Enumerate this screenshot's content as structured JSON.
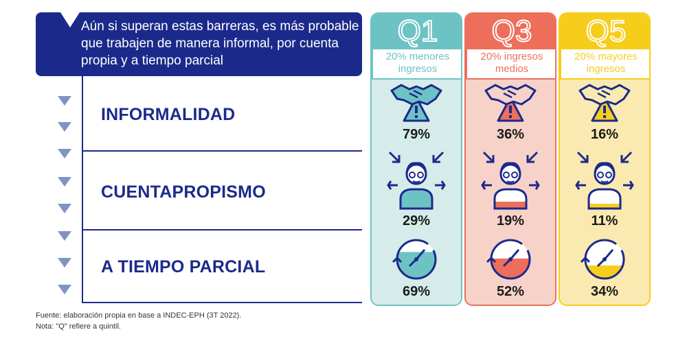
{
  "header": {
    "text": "Aún si superan estas barreras, es más probable que trabajen de manera informal, por cuenta propia y a tiempo parcial"
  },
  "rows": [
    {
      "label": "INFORMALIDAD"
    },
    {
      "label": "CUENTAPROPISMO"
    },
    {
      "label": "A TIEMPO PARCIAL"
    }
  ],
  "columns": [
    {
      "q": "Q1",
      "subtitle": "20% menores ingresos",
      "color": "#6dc3c4",
      "light": "#d6eceb",
      "values": [
        "79%",
        "29%",
        "69%"
      ]
    },
    {
      "q": "Q3",
      "subtitle": "20% ingresos medios",
      "color": "#ee6e5c",
      "light": "#f7d2c9",
      "values": [
        "36%",
        "19%",
        "52%"
      ]
    },
    {
      "q": "Q5",
      "subtitle": "20% mayores ingresos",
      "color": "#f7cd1c",
      "light": "#faeab1",
      "values": [
        "16%",
        "11%",
        "34%"
      ]
    }
  ],
  "chart_data": {
    "type": "table",
    "title": "Aún si superan estas barreras, es más probable que trabajen de manera informal, por cuenta propia y a tiempo parcial",
    "categories": [
      "INFORMALIDAD",
      "CUENTAPROPISMO",
      "A TIEMPO PARCIAL"
    ],
    "series": [
      {
        "name": "Q1",
        "label": "20% menores ingresos",
        "values": [
          79,
          29,
          69
        ]
      },
      {
        "name": "Q3",
        "label": "20% ingresos medios",
        "values": [
          36,
          19,
          52
        ]
      },
      {
        "name": "Q5",
        "label": "20% mayores ingresos",
        "values": [
          16,
          11,
          34
        ]
      }
    ],
    "unit": "%"
  },
  "footer": {
    "source": "Fuente: elaboración propia en base a INDEC-EPH (3T 2022).",
    "note": "Nota: \"Q\" refiere a quintil."
  },
  "colors": {
    "navy": "#1b2a8a",
    "arrow": "#7f93c4"
  }
}
